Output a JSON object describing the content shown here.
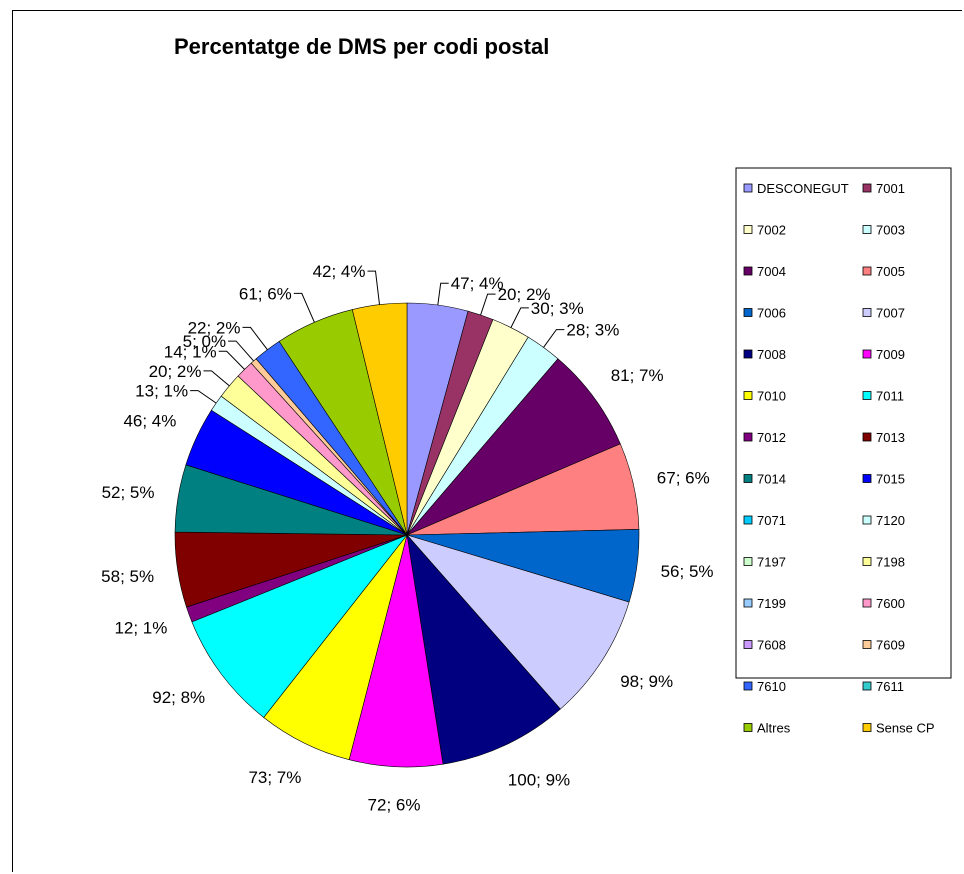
{
  "chart_data": {
    "type": "pie",
    "title": "Percentatge de DMS per codi postal",
    "legend_position": "right",
    "slices": [
      {
        "name": "DESCONEGUT",
        "value": 47,
        "label": "47; 4%",
        "color": "#9999ff"
      },
      {
        "name": "7001",
        "value": 20,
        "label": "20; 2%",
        "color": "#993366"
      },
      {
        "name": "7002",
        "value": 30,
        "label": "30; 3%",
        "color": "#ffffcc"
      },
      {
        "name": "7003",
        "value": 28,
        "label": "28; 3%",
        "color": "#ccffff"
      },
      {
        "name": "7004",
        "value": 81,
        "label": "81; 7%",
        "color": "#660066"
      },
      {
        "name": "7005",
        "value": 67,
        "label": "67; 6%",
        "color": "#ff8080"
      },
      {
        "name": "7006",
        "value": 56,
        "label": "56; 5%",
        "color": "#0066cc"
      },
      {
        "name": "7007",
        "value": 98,
        "label": "98; 9%",
        "color": "#ccccff"
      },
      {
        "name": "7008",
        "value": 100,
        "label": "100; 9%",
        "color": "#000080"
      },
      {
        "name": "7009",
        "value": 72,
        "label": "72; 6%",
        "color": "#ff00ff"
      },
      {
        "name": "7010",
        "value": 73,
        "label": "73; 7%",
        "color": "#ffff00"
      },
      {
        "name": "7011",
        "value": 92,
        "label": "92; 8%",
        "color": "#00ffff"
      },
      {
        "name": "7012",
        "value": 12,
        "label": "12; 1%",
        "color": "#800080"
      },
      {
        "name": "7013",
        "value": 58,
        "label": "58; 5%",
        "color": "#800000"
      },
      {
        "name": "7014",
        "value": 52,
        "label": "52; 5%",
        "color": "#008080"
      },
      {
        "name": "7015",
        "value": 46,
        "label": "46; 4%",
        "color": "#0000ff"
      },
      {
        "name": "7071",
        "value": 0,
        "label": "",
        "color": "#00ccff"
      },
      {
        "name": "7120",
        "value": 13,
        "label": "13; 1%",
        "color": "#ccffff"
      },
      {
        "name": "7197",
        "value": 0,
        "label": "",
        "color": "#ccffcc"
      },
      {
        "name": "7198",
        "value": 20,
        "label": "20; 2%",
        "color": "#ffff99"
      },
      {
        "name": "7199",
        "value": 0,
        "label": "",
        "color": "#99ccff"
      },
      {
        "name": "7600",
        "value": 14,
        "label": "14; 1%",
        "color": "#ff99cc"
      },
      {
        "name": "7608",
        "value": 0,
        "label": "",
        "color": "#cc99ff"
      },
      {
        "name": "7609",
        "value": 5,
        "label": "5; 0%",
        "color": "#ffcc99"
      },
      {
        "name": "7610",
        "value": 22,
        "label": "22; 2%",
        "color": "#3366ff"
      },
      {
        "name": "7611",
        "value": 0,
        "label": "",
        "color": "#33cccc"
      },
      {
        "name": "Altres",
        "value": 61,
        "label": "61; 6%",
        "color": "#99cc00"
      },
      {
        "name": "Sense CP",
        "value": 42,
        "label": "42; 4%",
        "color": "#ffcc00"
      }
    ]
  }
}
